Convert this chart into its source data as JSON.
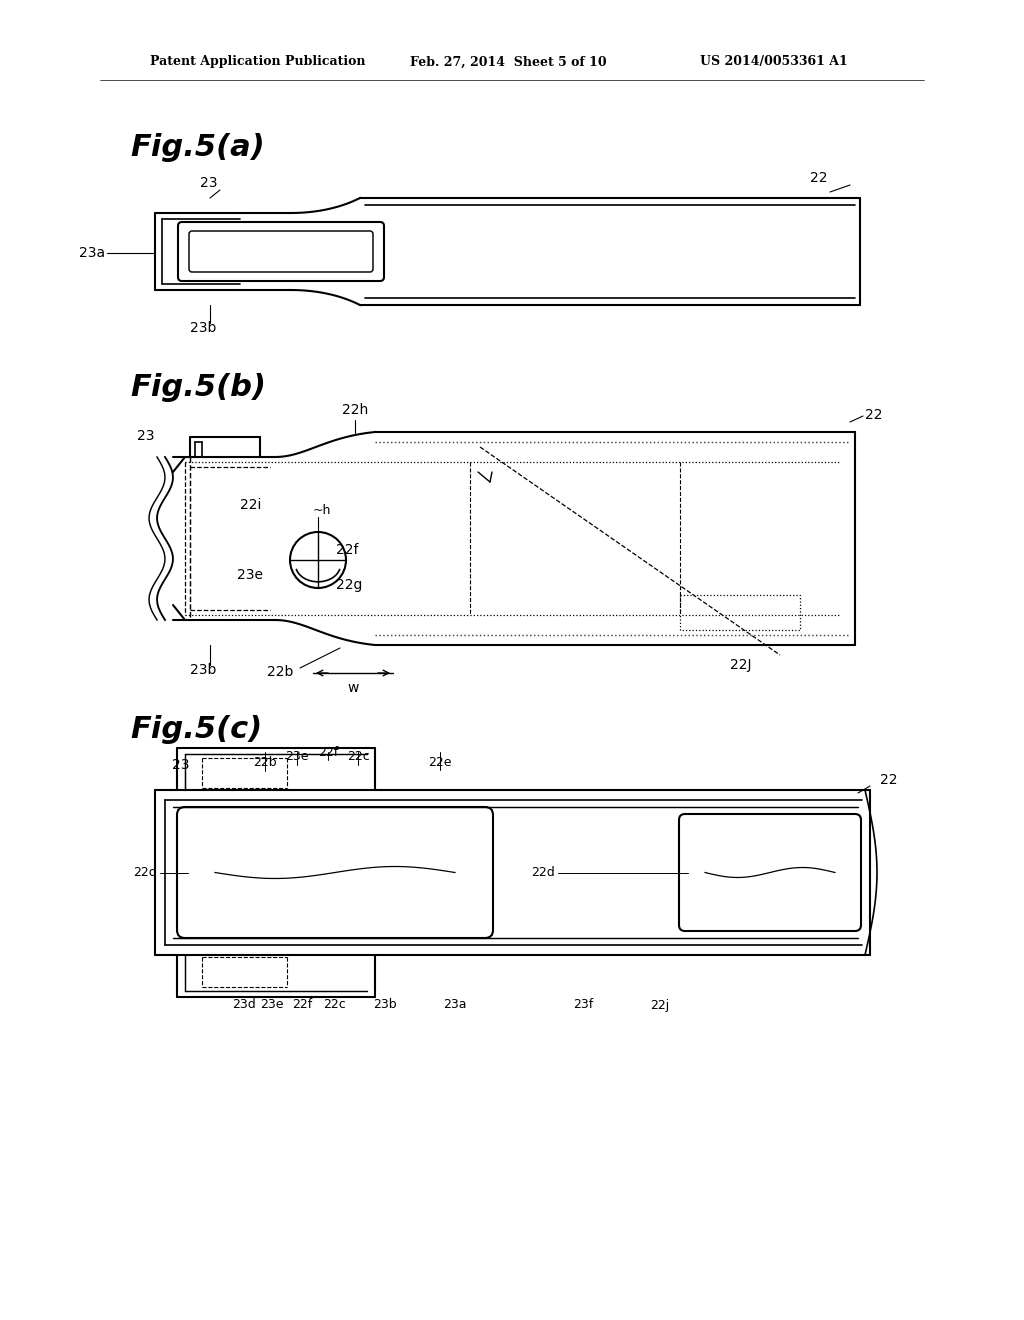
{
  "bg_color": "#ffffff",
  "header_left": "Patent Application Publication",
  "header_mid": "Feb. 27, 2014  Sheet 5 of 10",
  "header_right": "US 2014/0053361 A1",
  "fig_a_title": "Fig.5(a)",
  "fig_b_title": "Fig.5(b)",
  "fig_c_title": "Fig.5(c)",
  "line_color": "#000000",
  "line_width": 1.5
}
